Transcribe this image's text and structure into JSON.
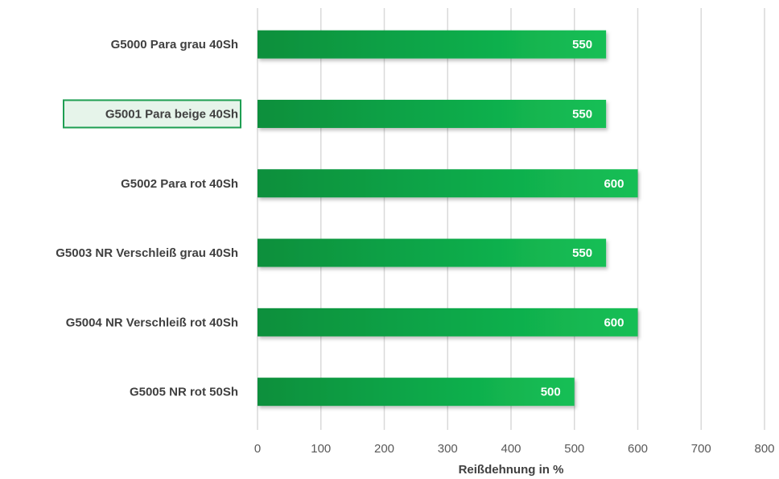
{
  "chart_data": {
    "type": "bar",
    "orientation": "horizontal",
    "categories": [
      "G5000 Para grau 40Sh",
      "G5001 Para beige 40Sh",
      "G5002 Para rot 40Sh",
      "G5003 NR Verschleiß grau 40Sh",
      "G5004 NR Verschleiß rot 40Sh",
      "G5005 NR rot 50Sh"
    ],
    "values": [
      550,
      550,
      600,
      550,
      600,
      500
    ],
    "value_labels": [
      "550",
      "550",
      "600",
      "550",
      "600",
      "500"
    ],
    "highlighted_category_index": 1,
    "xlabel": "Reißdehnung in %",
    "xlim": [
      0,
      800
    ],
    "xticks": [
      0,
      100,
      200,
      300,
      400,
      500,
      600,
      700,
      800
    ],
    "xtick_labels": [
      "0",
      "100",
      "200",
      "300",
      "400",
      "500",
      "600",
      "700",
      "800"
    ],
    "grid": "vertical",
    "legend": "none",
    "colors": {
      "bar_dark": "#0a8f3c",
      "bar_light": "#14bf55",
      "gridline": "#d9d9d9",
      "highlight_border": "#1e9e52",
      "highlight_fill": "#e6f4ea"
    }
  }
}
